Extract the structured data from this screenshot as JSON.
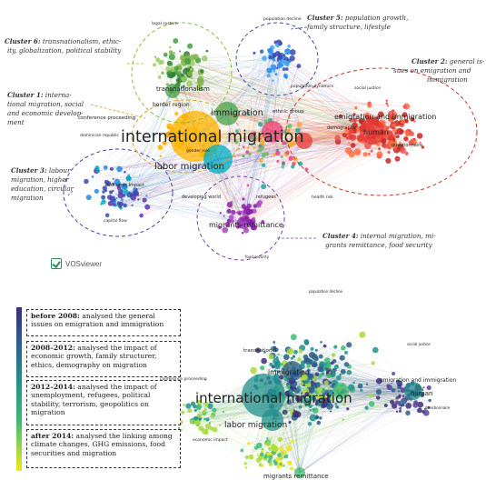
{
  "top_map": {
    "clusters": [
      {
        "num": "Cluster 5:",
        "text": [
          "population growth,",
          "family structure, lifestyle"
        ]
      },
      {
        "num": "Cluster 6:",
        "text": [
          "transnationalism, ethic-",
          "ity, globalization, political stability"
        ]
      },
      {
        "num": "Cluster 2:",
        "text": [
          "general is-",
          "sues on emigration and",
          "immigration"
        ]
      },
      {
        "num": "Cluster 1:",
        "text": [
          "interna-",
          "tional migration, social",
          "and economic develop-",
          "ment"
        ]
      },
      {
        "num": "Cluster 3:",
        "text": [
          "labour",
          "migration, higher",
          "education, circular",
          "migration"
        ]
      },
      {
        "num": "Cluster 4:",
        "text": [
          "internal migration, mi-",
          "grants remittance, food security"
        ]
      }
    ],
    "labels": {
      "main": "international migration",
      "labor": "labor migration",
      "immigration": "immigration",
      "emig": "emigration and immigration",
      "human": "human",
      "remit": "migrants remittance",
      "transnat": "transnationalism",
      "border": "border region",
      "confproc": "conference proceeding",
      "dominican": "dominican republic",
      "econimpact": "economic impact",
      "capital": "capital flow",
      "questionnaire": "questionnaire",
      "demography": "demography",
      "ethnic": "ethnic group",
      "popdecline": "population decline",
      "popdyn": "population dynamics",
      "developing": "developing world",
      "refugees": "refugees",
      "food": "food security",
      "gender": "gender role",
      "socialjustice": "social justice",
      "health": "health risk",
      "legal": "legal system"
    },
    "logo": "VOSviewer"
  },
  "bottom_map": {
    "labels": {
      "main": "international migration",
      "labor": "labor migration",
      "immigration": "immigration",
      "emig": "emigration and immigration",
      "human": "human",
      "remit": "migrants remittance",
      "transnat": "transnational",
      "confproc": "conference proceeding",
      "econimpact": "economic impact",
      "popdecline": "population decline",
      "socialjustice": "social justice",
      "questionnaire": "questionnaire"
    }
  },
  "timeline": {
    "colors": [
      "#3b2f7a",
      "#2e5c8a",
      "#21908d",
      "#3fbc73",
      "#a8d940",
      "#f0e418"
    ],
    "periods": [
      {
        "label": "before 2008:",
        "text": "analysed the general issues on emigration and immigration"
      },
      {
        "label": "2008–2012:",
        "text": "analysed the impact of economic growth, family structurer, ethics, demography on migration"
      },
      {
        "label": "2012–2014:",
        "text": "analysed the impact of unemployment, refugees, political stability, terrorism, geopolitics on migration"
      },
      {
        "label": "after 2014:",
        "text": "analysed the linking among climate changes, GHG emissions, food securities and migration"
      }
    ]
  }
}
